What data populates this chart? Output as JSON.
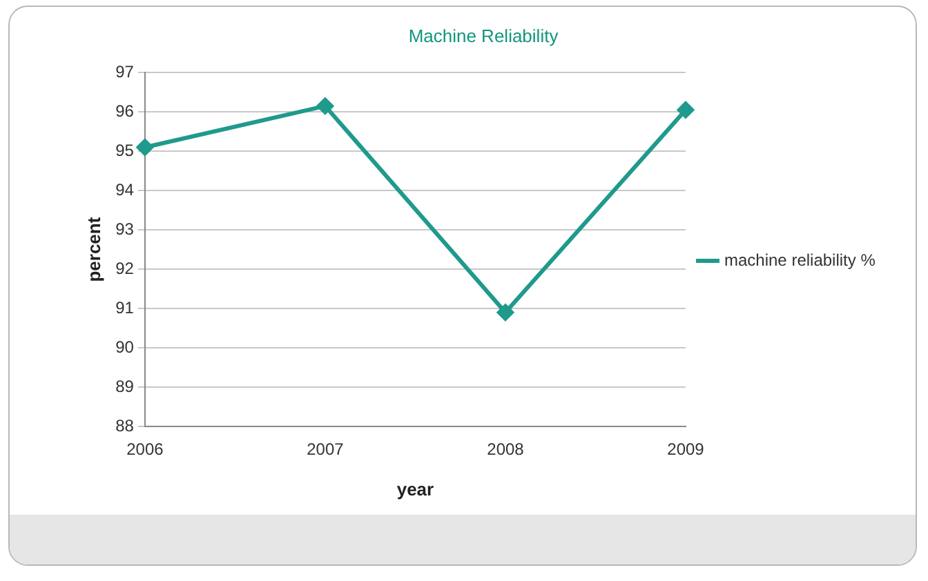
{
  "chart_data": {
    "type": "line",
    "title": "Machine Reliability",
    "xlabel": "year",
    "ylabel": "percent",
    "categories": [
      "2006",
      "2007",
      "2008",
      "2009"
    ],
    "series": [
      {
        "name": "machine reliability %",
        "color": "#1f9a8c",
        "values": [
          95.1,
          96.15,
          90.9,
          96.05
        ]
      }
    ],
    "ylim": [
      88,
      97
    ],
    "yticks": [
      88,
      89,
      90,
      91,
      92,
      93,
      94,
      95,
      96,
      97
    ],
    "grid": "y",
    "legend": "right",
    "marker": "diamond",
    "line_style": "solid"
  }
}
